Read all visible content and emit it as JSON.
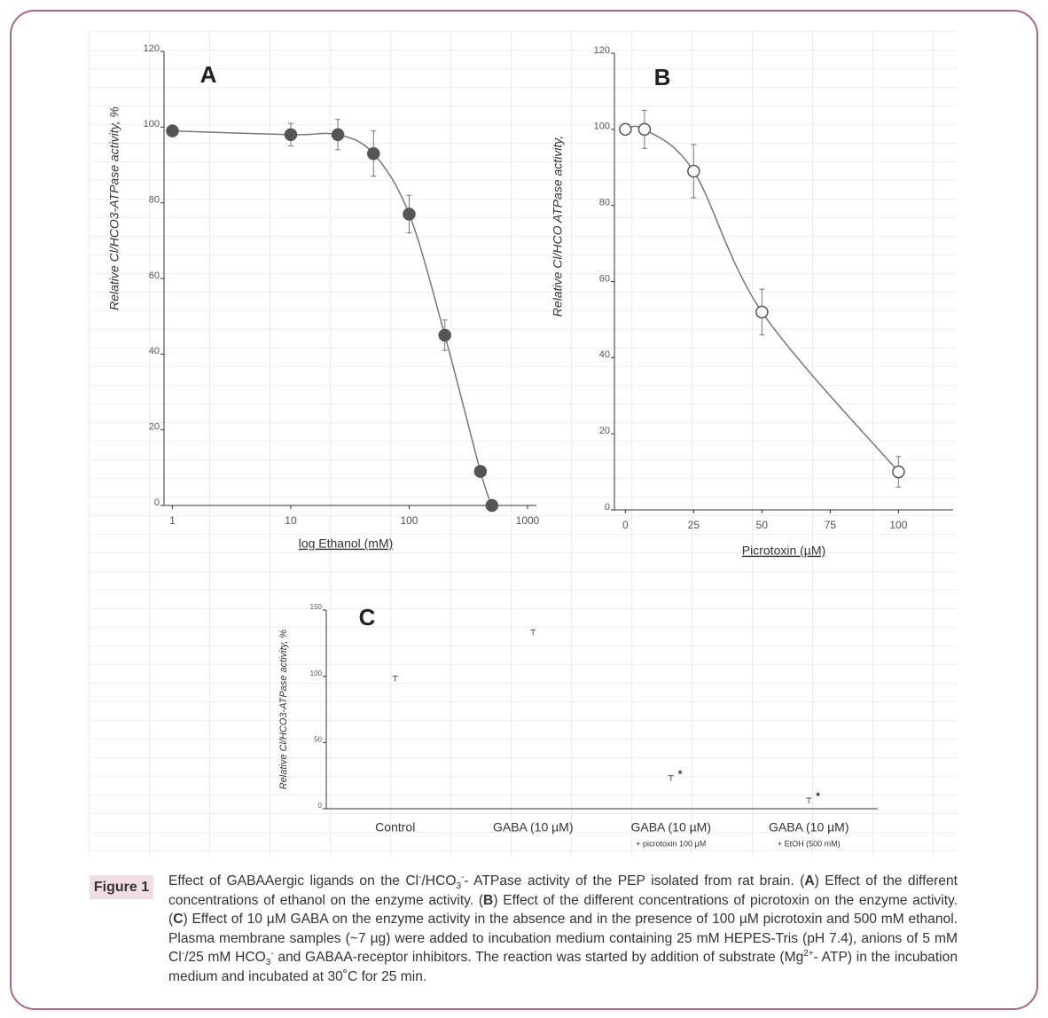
{
  "chart_data": [
    {
      "type": "line",
      "panel": "A",
      "xscale": "log",
      "x": [
        1,
        10,
        25,
        50,
        100,
        200,
        400,
        500
      ],
      "values": [
        99,
        98,
        98,
        93,
        77,
        45,
        9,
        0
      ],
      "errors": [
        0,
        3,
        4,
        6,
        5,
        4,
        0,
        0
      ],
      "xlim": [
        0.85,
        1000
      ],
      "xticks": [
        1,
        10,
        100,
        1000
      ],
      "ylim": [
        0,
        120
      ],
      "yticks": [
        0,
        20,
        40,
        60,
        80,
        100,
        120
      ],
      "xlabel": "log Ethanol  (mM)",
      "ylabel": "Relative Cl/HCO3-ATPase activity, %",
      "marker": "filled",
      "color": "#555555"
    },
    {
      "type": "line",
      "panel": "B",
      "xscale": "linear",
      "x": [
        0,
        7,
        25,
        50,
        100
      ],
      "values": [
        100,
        100,
        89,
        52,
        10
      ],
      "errors": [
        0,
        5,
        7,
        6,
        4
      ],
      "xlim": [
        -4,
        120
      ],
      "xticks": [
        0,
        25,
        50,
        75,
        100
      ],
      "ylim": [
        0,
        120
      ],
      "yticks": [
        0,
        20,
        40,
        60,
        80,
        100,
        120
      ],
      "xlabel": "Picrotoxin (µM)",
      "ylabel": "Relative Cl/HCO ATPase activity,",
      "marker": "open",
      "color": "#555555"
    },
    {
      "type": "errorbar",
      "panel": "C",
      "categories": [
        "Control",
        "GABA (10 µM)",
        "GABA (10 µM)",
        "GABA (10 µM)"
      ],
      "category_notes": [
        null,
        null,
        "+ picrotoxin 100 µM",
        "+ EtOH (500 mM)"
      ],
      "values": [
        100,
        135,
        25,
        8
      ],
      "significance": [
        null,
        null,
        "*",
        "*"
      ],
      "ylim": [
        0,
        150
      ],
      "yticks": [
        0,
        50,
        100,
        150
      ],
      "ylabel": "Relative Cl/HCO3-ATPase activity, %",
      "color": "#555555"
    }
  ],
  "caption": {
    "figure_label": "Figure 1",
    "parts": [
      "Effect of GABAAergic ligands on the Cl",
      "-",
      "/HCO",
      "3",
      "-",
      "- ATPase activity of the PEP isolated from rat brain. (",
      "A",
      ") Effect of the different concentrations of ethanol on the enzyme activity. (",
      "B",
      ") Effect of the different concentrations of picrotoxin on the enzyme activity. (",
      "C",
      ") Effect of 10 µM GABA on the enzyme activity in the absence and in the presence of 100 µM picrotoxin and 500 mM ethanol. Plasma membrane samples (~7 µg) were added to incubation medium containing 25 mM HEPES-Tris (pH 7.4), anions of 5 mM Cl",
      "-",
      "/25 mM HCO",
      "3",
      "-",
      " and GABAA-receptor inhibitors. The reaction was started by addition of substrate (Mg",
      "2+",
      "- ATP) in the incubation medium and incubated at 30˚C for 25 min."
    ]
  }
}
